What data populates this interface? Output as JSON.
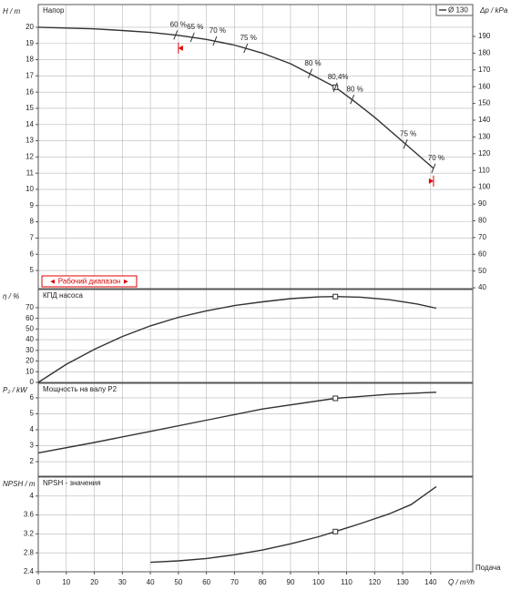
{
  "chart_data": [
    {
      "type": "line",
      "title": "Напор",
      "ylabel": "H / m",
      "y2label": "Δp / kPa",
      "x": [
        0,
        10,
        20,
        30,
        40,
        50,
        60,
        70,
        80,
        90,
        100,
        106,
        113,
        120,
        130,
        141
      ],
      "series": [
        {
          "name": "Ø 130",
          "color": "#333333",
          "values": [
            20.0,
            19.95,
            19.9,
            19.8,
            19.68,
            19.5,
            19.25,
            18.9,
            18.4,
            17.75,
            16.85,
            16.3,
            15.4,
            14.45,
            12.95,
            11.3
          ]
        }
      ],
      "xlim": [
        0,
        155
      ],
      "ylim": [
        3.88,
        21.4
      ],
      "yticks": [
        5,
        6,
        7,
        8,
        9,
        10,
        11,
        12,
        13,
        14,
        15,
        16,
        17,
        18,
        19,
        20
      ],
      "y2lim": [
        39.5,
        209
      ],
      "y2ticks": [
        40,
        50,
        60,
        70,
        80,
        90,
        100,
        110,
        120,
        130,
        140,
        150,
        160,
        170,
        180,
        190
      ],
      "point": {
        "x": 106,
        "y": 16.3
      },
      "annotations": [
        {
          "text": "60 %",
          "x": 49,
          "y": 19.52
        },
        {
          "text": "65 %",
          "x": 55,
          "y": 19.38
        },
        {
          "text": "70 %",
          "x": 63,
          "y": 19.15
        },
        {
          "text": "75 %",
          "x": 74,
          "y": 18.7
        },
        {
          "text": "80 %",
          "x": 97,
          "y": 17.15
        },
        {
          "text": "80,4%",
          "x": 106,
          "y": 16.3
        },
        {
          "text": "80 %",
          "x": 112,
          "y": 15.55
        },
        {
          "text": "75 %",
          "x": 131,
          "y": 12.8
        },
        {
          "text": "70 %",
          "x": 141,
          "y": 11.3
        }
      ],
      "operating_range": [
        50,
        141
      ],
      "range_label": "◄ Рабочий диапазон ►",
      "range_color": "#e00000",
      "grid": true
    },
    {
      "type": "line",
      "title": "КПД насоса",
      "ylabel": "η / %",
      "x": [
        0,
        10,
        20,
        30,
        40,
        50,
        60,
        70,
        80,
        90,
        100,
        106,
        115,
        125,
        135,
        142
      ],
      "values": [
        0,
        17,
        31,
        43,
        53,
        61,
        67,
        72,
        75.5,
        78.5,
        80.1,
        80.4,
        79.8,
        77.5,
        73.5,
        69.5
      ],
      "color": "#333333",
      "xlim": [
        0,
        155
      ],
      "ylim": [
        0,
        87
      ],
      "yticks": [
        0,
        10,
        20,
        30,
        40,
        50,
        60,
        70
      ],
      "point": {
        "x": 106,
        "y": 80.4
      },
      "grid": true
    },
    {
      "type": "line",
      "title": "Мощность на валу P2",
      "ylabel": "P₂ / kW",
      "x": [
        0,
        20,
        40,
        60,
        80,
        106,
        125,
        142
      ],
      "values": [
        2.55,
        3.2,
        3.9,
        4.6,
        5.3,
        5.97,
        6.22,
        6.35
      ],
      "color": "#333333",
      "xlim": [
        0,
        155
      ],
      "ylim": [
        1.09,
        6.91
      ],
      "yticks": [
        2,
        3,
        4,
        5,
        6
      ],
      "point": {
        "x": 106,
        "y": 5.97
      },
      "grid": true
    },
    {
      "type": "line",
      "title": "NPSH - значения",
      "ylabel": "NPSH / m",
      "xlabel": "Q / m³/h",
      "side_label": "Подача",
      "x": [
        40,
        50,
        60,
        70,
        80,
        90,
        100,
        106,
        115,
        125,
        133,
        142
      ],
      "values": [
        2.6,
        2.63,
        2.68,
        2.76,
        2.86,
        2.99,
        3.14,
        3.25,
        3.42,
        3.62,
        3.82,
        4.2
      ],
      "color": "#333333",
      "xlim": [
        0,
        155
      ],
      "ylim": [
        2.4,
        4.4
      ],
      "yticks": [
        2.4,
        2.8,
        3.2,
        3.6,
        4
      ],
      "xticks": [
        0,
        10,
        20,
        30,
        40,
        50,
        60,
        70,
        80,
        90,
        100,
        110,
        120,
        130,
        140
      ],
      "point": {
        "x": 106,
        "y": 3.25
      },
      "grid": true
    }
  ]
}
